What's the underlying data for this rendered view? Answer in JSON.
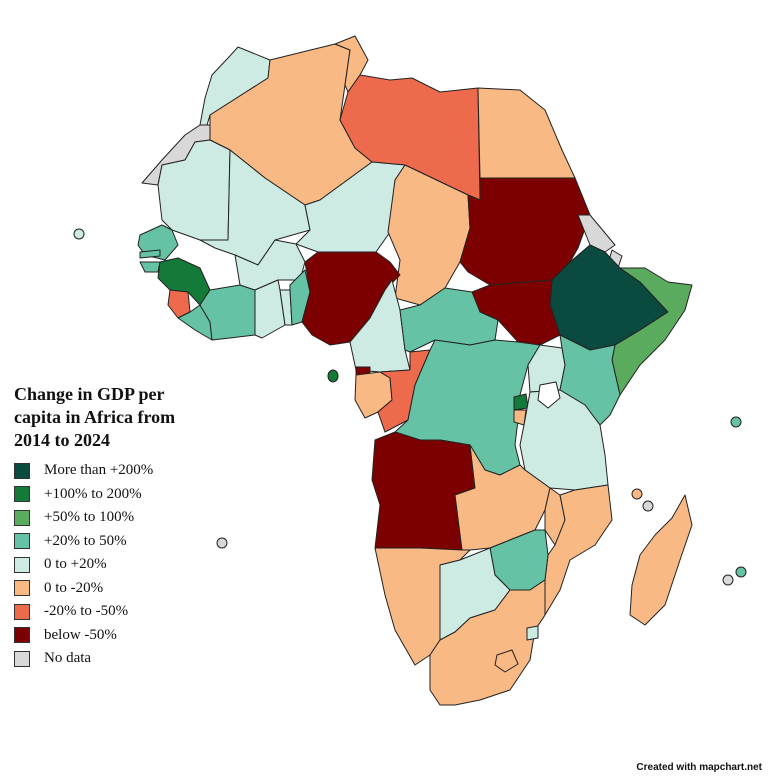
{
  "legend": {
    "title": "Change in GDP per capita in Africa from 2014 to 2024",
    "items": [
      {
        "label": "More than +200%",
        "color": "#0b4a3f"
      },
      {
        "label": "+100% to 200%",
        "color": "#147a3a"
      },
      {
        "label": "+50% to 100%",
        "color": "#5aab5e"
      },
      {
        "label": "+20% to 50%",
        "color": "#66c2a4"
      },
      {
        "label": "0 to +20%",
        "color": "#cdebe3"
      },
      {
        "label": "0 to -20%",
        "color": "#f8b985"
      },
      {
        "label": "-20% to -50%",
        "color": "#ee6a4d"
      },
      {
        "label": "below -50%",
        "color": "#7d0000"
      },
      {
        "label": "No data",
        "color": "#d8d8d8"
      }
    ]
  },
  "credit": "Created with mapchart.net",
  "countries": [
    {
      "name": "Morocco",
      "category": 4
    },
    {
      "name": "Western Sahara",
      "category": 8
    },
    {
      "name": "Algeria",
      "category": 5
    },
    {
      "name": "Tunisia",
      "category": 5
    },
    {
      "name": "Libya",
      "category": 6
    },
    {
      "name": "Egypt",
      "category": 5
    },
    {
      "name": "Mauritania",
      "category": 4
    },
    {
      "name": "Mali",
      "category": 4
    },
    {
      "name": "Niger",
      "category": 4
    },
    {
      "name": "Chad",
      "category": 5
    },
    {
      "name": "Sudan",
      "category": 7
    },
    {
      "name": "Eritrea",
      "category": 8
    },
    {
      "name": "Djibouti",
      "category": 8
    },
    {
      "name": "Ethiopia",
      "category": 0
    },
    {
      "name": "Somalia",
      "category": 2
    },
    {
      "name": "South Sudan",
      "category": 7
    },
    {
      "name": "Senegal",
      "category": 3
    },
    {
      "name": "Gambia",
      "category": 3
    },
    {
      "name": "Guinea-Bissau",
      "category": 3
    },
    {
      "name": "Guinea",
      "category": 1
    },
    {
      "name": "Sierra Leone",
      "category": 6
    },
    {
      "name": "Liberia",
      "category": 3
    },
    {
      "name": "Ivory Coast",
      "category": 3
    },
    {
      "name": "Burkina Faso",
      "category": 4
    },
    {
      "name": "Ghana",
      "category": 4
    },
    {
      "name": "Togo",
      "category": 4
    },
    {
      "name": "Benin",
      "category": 3
    },
    {
      "name": "Nigeria",
      "category": 7
    },
    {
      "name": "Cameroon",
      "category": 4
    },
    {
      "name": "Central African Republic",
      "category": 3
    },
    {
      "name": "Equatorial Guinea",
      "category": 7
    },
    {
      "name": "Gabon",
      "category": 5
    },
    {
      "name": "Republic of the Congo",
      "category": 6
    },
    {
      "name": "DR Congo",
      "category": 3
    },
    {
      "name": "Uganda",
      "category": 4
    },
    {
      "name": "Kenya",
      "category": 3
    },
    {
      "name": "Rwanda",
      "category": 1
    },
    {
      "name": "Burundi",
      "category": 5
    },
    {
      "name": "Tanzania",
      "category": 4
    },
    {
      "name": "Angola",
      "category": 7
    },
    {
      "name": "Zambia",
      "category": 5
    },
    {
      "name": "Malawi",
      "category": 5
    },
    {
      "name": "Mozambique",
      "category": 5
    },
    {
      "name": "Zimbabwe",
      "category": 3
    },
    {
      "name": "Namibia",
      "category": 5
    },
    {
      "name": "Botswana",
      "category": 4
    },
    {
      "name": "South Africa",
      "category": 5
    },
    {
      "name": "Lesotho",
      "category": 5
    },
    {
      "name": "Eswatini",
      "category": 4
    },
    {
      "name": "Madagascar",
      "category": 5
    },
    {
      "name": "Cape Verde",
      "category": 4
    },
    {
      "name": "Sao Tome and Principe",
      "category": 1
    },
    {
      "name": "Seychelles",
      "category": 3
    },
    {
      "name": "Comoros",
      "category": 5
    },
    {
      "name": "Mayotte",
      "category": 8
    },
    {
      "name": "Mauritius",
      "category": 3
    },
    {
      "name": "Reunion",
      "category": 8
    },
    {
      "name": "Saint Helena",
      "category": 8
    }
  ]
}
